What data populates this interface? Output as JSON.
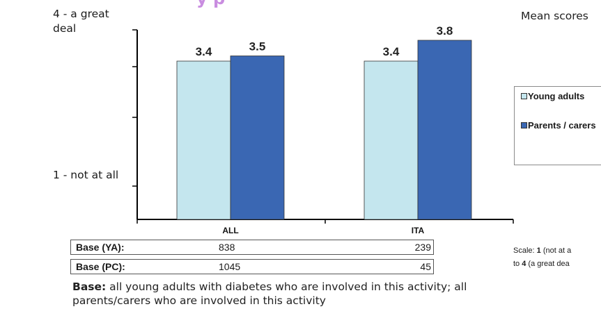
{
  "chart_data": {
    "type": "bar",
    "title_fragment": "y p",
    "categories": [
      "ALL",
      "ITA"
    ],
    "series": [
      {
        "name": "Young adults",
        "values": [
          3.4,
          3.4
        ],
        "color": "#c4e6ee"
      },
      {
        "name": "Parents / carers",
        "values": [
          3.5,
          3.8
        ],
        "color": "#3a67b3"
      }
    ],
    "y_tick_top": "4 - a great deal",
    "y_tick_bottom": "1 - not at all",
    "legend_labels": [
      "Young adults",
      "Parents / carers"
    ],
    "legend_position": "right",
    "grid": false
  },
  "mean_scores_label": "Mean scores",
  "base_table": [
    {
      "label": "Base (YA):",
      "values": [
        "838",
        "239"
      ]
    },
    {
      "label": "Base (PC):",
      "values": [
        "1045",
        "45"
      ]
    }
  ],
  "scale_note": {
    "line1_prefix": "Scale: ",
    "line1_bold": "1",
    "line1_rest": " (not at a",
    "line2_prefix": "to ",
    "line2_bold": "4",
    "line2_rest": " (a great dea"
  },
  "footnote": {
    "bold": "Base:",
    "text": " all young adults with diabetes who are involved in this activity; all parents/carers who are involved in this activity"
  }
}
